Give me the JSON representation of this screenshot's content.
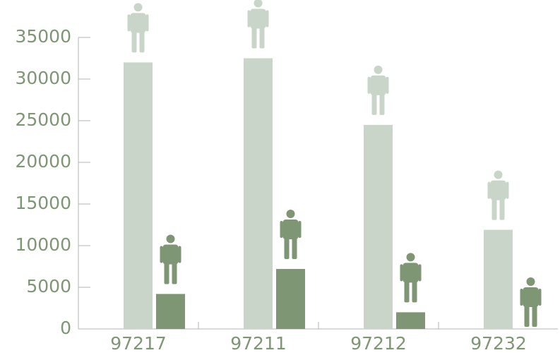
{
  "chart_data": {
    "type": "bar",
    "categories": [
      "97217",
      "97211",
      "97212",
      "97232"
    ],
    "series": [
      {
        "color": "#cad5ca",
        "values": [
          32000,
          32500,
          24500,
          11900
        ]
      },
      {
        "color": "#7e9673",
        "values": [
          4200,
          7200,
          2000,
          0
        ]
      }
    ],
    "ylim": [
      0,
      35000
    ],
    "yticks": [
      0,
      5000,
      10000,
      15000,
      20000,
      25000,
      30000,
      35000
    ]
  }
}
